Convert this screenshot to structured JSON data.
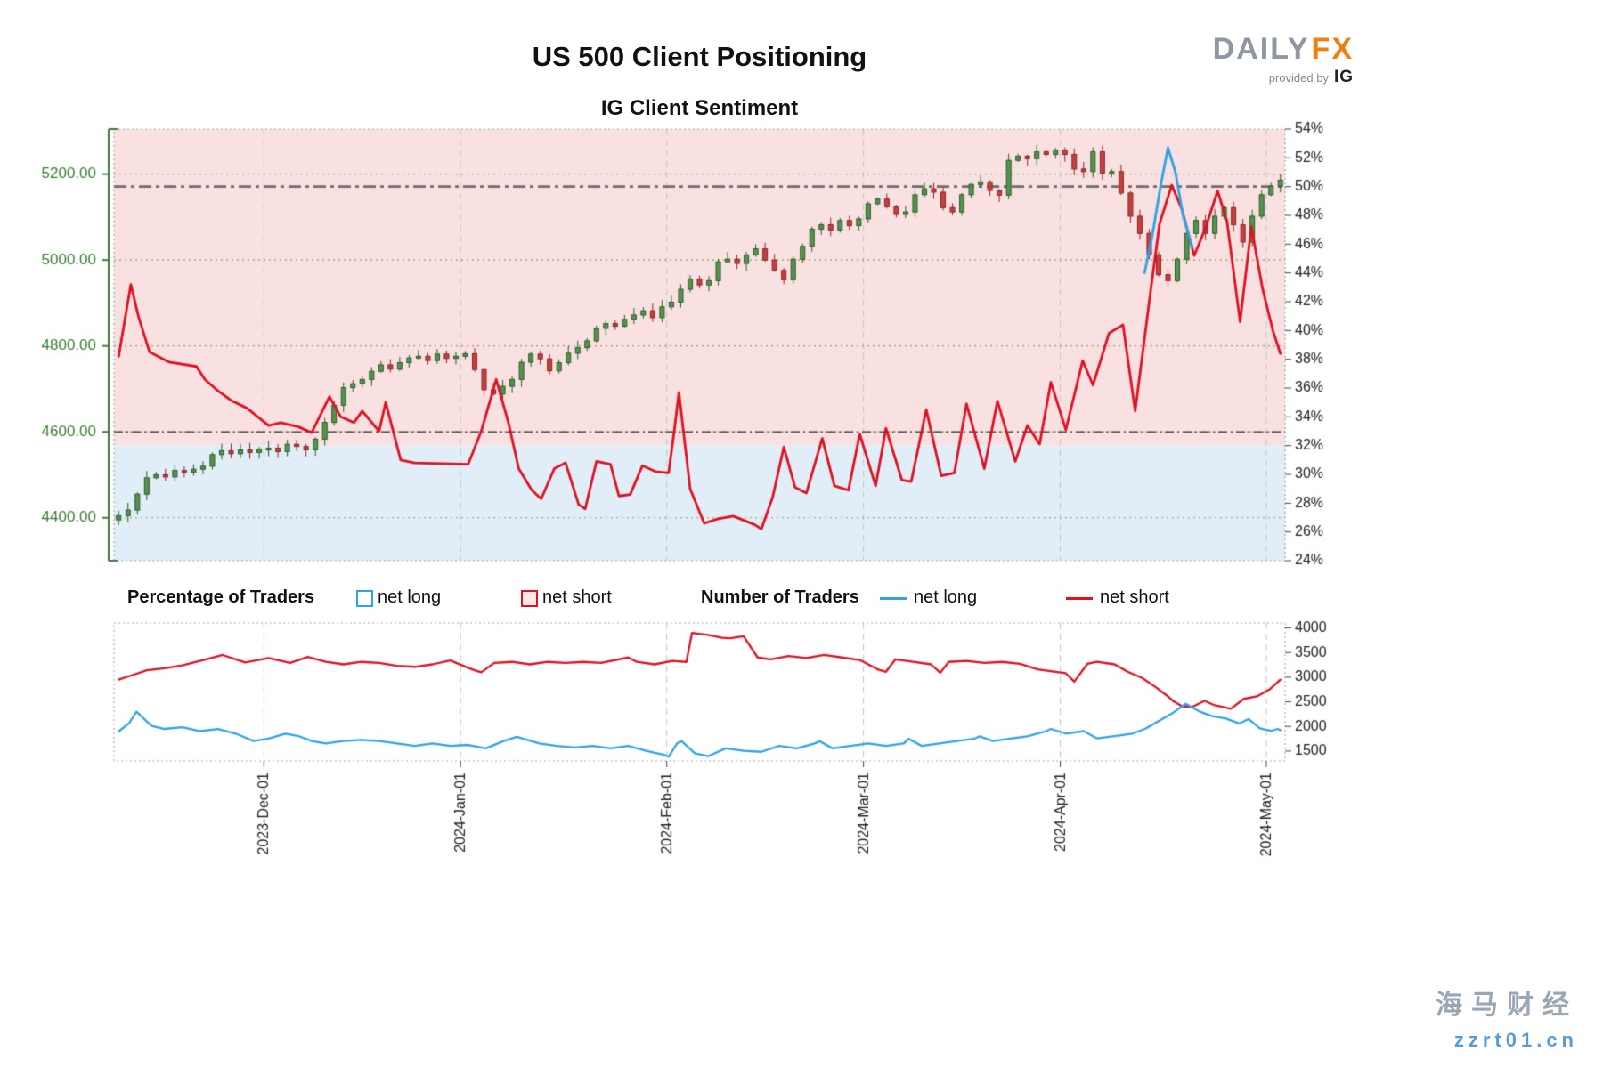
{
  "header": {
    "title": "US 500 Client Positioning",
    "subtitle": "IG Client Sentiment"
  },
  "brand": {
    "daily": "DAILY",
    "fx": "FX",
    "provided_by": "provided by",
    "ig": "IG"
  },
  "legend": {
    "pct_label": "Percentage of Traders",
    "pct_net_long": "net long",
    "pct_net_short": "net short",
    "num_label": "Number of Traders",
    "num_net_long": "net long",
    "num_net_short": "net short"
  },
  "watermark": {
    "line1": "海马财经",
    "line2": "zzrt01.cn"
  },
  "colors": {
    "net_long": "#2fa3e8",
    "net_short": "#dd1122",
    "candle_up_fill": "#57934f",
    "candle_up_stroke": "#275c27",
    "candle_down_fill": "#c44141",
    "candle_down_stroke": "#8c2323",
    "bg_pink": "#f9e1e1",
    "bg_blue": "#e1eef7",
    "price_label": "#3a7d33",
    "grid_price": "#9a9a50",
    "grid_month": "#c4c4c4",
    "ref_50": "#6e6e6e",
    "ref_4600": "#4a4a4a",
    "border": "#9aa89a",
    "axis_text": "#222222",
    "brand_gray": "#8f97a3",
    "brand_orange": "#f07f13",
    "swatch_short_bg": "#fbe9e9"
  },
  "chart_data": [
    {
      "type": "candlestick+line",
      "title": "IG Client Sentiment",
      "price_axis": {
        "ticks": [
          4400,
          4600,
          4800,
          5000,
          5200
        ],
        "labels": [
          "4400.00",
          "4600.00",
          "4800.00",
          "5000.00",
          "5200.00"
        ],
        "range": [
          4300,
          5305
        ]
      },
      "pct_axis": {
        "ticks": [
          54,
          52,
          50,
          48,
          46,
          44,
          42,
          40,
          38,
          36,
          34,
          32,
          30,
          28,
          26,
          24
        ],
        "range": [
          24,
          54
        ]
      },
      "x_axis": {
        "month_labels": [
          "2023-Dec-01",
          "2024-Jan-01",
          "2024-Feb-01",
          "2024-Mar-01",
          "2024-Apr-01",
          "2024-May-01"
        ],
        "month_day_index": [
          16,
          37,
          59,
          80,
          101,
          123
        ],
        "days_total": 125
      },
      "reference_lines": {
        "pct_level": 50,
        "price_level": 4600
      },
      "background_split_pct": 32,
      "close": [
        4405,
        4418,
        4455,
        4493,
        4500,
        4495,
        4510,
        4506,
        4513,
        4520,
        4547,
        4556,
        4549,
        4558,
        4552,
        4560,
        4562,
        4554,
        4571,
        4566,
        4558,
        4583,
        4622,
        4662,
        4703,
        4712,
        4722,
        4741,
        4756,
        4746,
        4761,
        4772,
        4776,
        4766,
        4781,
        4771,
        4776,
        4782,
        4745,
        4698,
        4688,
        4706,
        4722,
        4762,
        4781,
        4770,
        4742,
        4761,
        4783,
        4796,
        4812,
        4841,
        4852,
        4846,
        4862,
        4872,
        4882,
        4866,
        4891,
        4902,
        4932,
        4956,
        4942,
        4952,
        4996,
        5002,
        4992,
        5012,
        5026,
        5000,
        4976,
        4954,
        5002,
        5032,
        5072,
        5082,
        5070,
        5092,
        5080,
        5096,
        5131,
        5142,
        5124,
        5106,
        5112,
        5152,
        5166,
        5158,
        5122,
        5112,
        5152,
        5176,
        5182,
        5162,
        5151,
        5232,
        5242,
        5236,
        5252,
        5246,
        5256,
        5246,
        5212,
        5206,
        5252,
        5202,
        5206,
        5156,
        5102,
        5062,
        5012,
        4966,
        4952,
        5002,
        5062,
        5092,
        5062,
        5102,
        5122,
        5082,
        5042,
        5102,
        5152,
        5172,
        5186
      ],
      "net_short_pct_points": [
        [
          0,
          38.2
        ],
        [
          1.3,
          43.2
        ],
        [
          2.1,
          41
        ],
        [
          3.3,
          38.5
        ],
        [
          5.4,
          37.8
        ],
        [
          8.3,
          37.5
        ],
        [
          9.2,
          36.6
        ],
        [
          10.6,
          35.8
        ],
        [
          12.1,
          35.1
        ],
        [
          13.7,
          34.6
        ],
        [
          16,
          33.4
        ],
        [
          17.3,
          33.6
        ],
        [
          19.2,
          33.3
        ],
        [
          20.6,
          32.9
        ],
        [
          22.5,
          35.4
        ],
        [
          23.7,
          34
        ],
        [
          25.1,
          33.6
        ],
        [
          26,
          34.4
        ],
        [
          27.8,
          33
        ],
        [
          28.5,
          35
        ],
        [
          30.1,
          31
        ],
        [
          31.6,
          30.8
        ],
        [
          37.3,
          30.7
        ],
        [
          38.7,
          33
        ],
        [
          40.3,
          36.6
        ],
        [
          41.6,
          33.6
        ],
        [
          42.7,
          30.4
        ],
        [
          44.1,
          28.9
        ],
        [
          45.1,
          28.3
        ],
        [
          46.5,
          30.4
        ],
        [
          47.7,
          30.8
        ],
        [
          49.1,
          27.9
        ],
        [
          49.8,
          27.6
        ],
        [
          51,
          30.9
        ],
        [
          52.5,
          30.7
        ],
        [
          53.4,
          28.5
        ],
        [
          54.6,
          28.6
        ],
        [
          55.9,
          30.6
        ],
        [
          57.3,
          30.2
        ],
        [
          58.7,
          30.1
        ],
        [
          59.3,
          33
        ],
        [
          59.8,
          35.7
        ],
        [
          61,
          29
        ],
        [
          62.5,
          26.6
        ],
        [
          63.9,
          26.9
        ],
        [
          65.6,
          27.1
        ],
        [
          67.9,
          26.5
        ],
        [
          68.6,
          26.2
        ],
        [
          69.8,
          28.4
        ],
        [
          71,
          31.9
        ],
        [
          72.2,
          29.1
        ],
        [
          73.4,
          28.7
        ],
        [
          75.1,
          32.5
        ],
        [
          76.4,
          29.2
        ],
        [
          77.9,
          28.9
        ],
        [
          79.1,
          32.8
        ],
        [
          80.8,
          29.2
        ],
        [
          81.9,
          33.2
        ],
        [
          83.6,
          29.6
        ],
        [
          84.6,
          29.5
        ],
        [
          86.2,
          34.5
        ],
        [
          87.8,
          29.9
        ],
        [
          89.2,
          30.1
        ],
        [
          90.5,
          34.9
        ],
        [
          92.4,
          30.4
        ],
        [
          93.8,
          35.1
        ],
        [
          95.7,
          30.9
        ],
        [
          97,
          33.4
        ],
        [
          98.3,
          32.1
        ],
        [
          99.5,
          36.4
        ],
        [
          101.1,
          33.1
        ],
        [
          102.9,
          37.9
        ],
        [
          104,
          36.2
        ],
        [
          105.7,
          39.8
        ],
        [
          107.2,
          40.4
        ],
        [
          108.5,
          34.4
        ],
        [
          110.2,
          43
        ],
        [
          111.1,
          47.4
        ],
        [
          112.4,
          50.1
        ],
        [
          113.5,
          48.4
        ],
        [
          114.8,
          45.2
        ],
        [
          116,
          47.1
        ],
        [
          117.3,
          49.7
        ],
        [
          118.3,
          47.6
        ],
        [
          119.7,
          40.6
        ],
        [
          120.9,
          47.2
        ],
        [
          122.1,
          42.9
        ],
        [
          123.2,
          40
        ],
        [
          124,
          38.4
        ]
      ],
      "net_long_pct_points": [
        [
          109.5,
          44
        ],
        [
          110.3,
          46.5
        ],
        [
          111.2,
          50
        ],
        [
          112,
          52.7
        ],
        [
          112.8,
          51
        ],
        [
          113.6,
          48
        ],
        [
          114.6,
          45.8
        ]
      ]
    },
    {
      "type": "line",
      "count_axis": {
        "ticks": [
          4000,
          3500,
          3000,
          2500,
          2000,
          1500
        ],
        "range": [
          1300,
          4100
        ]
      },
      "net_short_count_points": [
        [
          0,
          2950
        ],
        [
          1.9,
          3070
        ],
        [
          3,
          3140
        ],
        [
          4.9,
          3180
        ],
        [
          6.8,
          3240
        ],
        [
          9.7,
          3380
        ],
        [
          11.1,
          3450
        ],
        [
          13.5,
          3300
        ],
        [
          14.9,
          3350
        ],
        [
          16,
          3390
        ],
        [
          18.3,
          3290
        ],
        [
          20.2,
          3410
        ],
        [
          22.1,
          3310
        ],
        [
          24,
          3260
        ],
        [
          25.9,
          3310
        ],
        [
          27.8,
          3290
        ],
        [
          29.7,
          3230
        ],
        [
          31.6,
          3210
        ],
        [
          33.5,
          3260
        ],
        [
          35.4,
          3340
        ],
        [
          37.3,
          3190
        ],
        [
          38,
          3140
        ],
        [
          38.7,
          3100
        ],
        [
          40.1,
          3290
        ],
        [
          42,
          3310
        ],
        [
          43.9,
          3260
        ],
        [
          45.8,
          3310
        ],
        [
          47.7,
          3290
        ],
        [
          49.6,
          3310
        ],
        [
          51.5,
          3290
        ],
        [
          54.4,
          3400
        ],
        [
          55.3,
          3310
        ],
        [
          57.2,
          3260
        ],
        [
          59.1,
          3330
        ],
        [
          60.6,
          3310
        ],
        [
          61.2,
          3900
        ],
        [
          62.9,
          3860
        ],
        [
          64.4,
          3800
        ],
        [
          65.3,
          3790
        ],
        [
          66.7,
          3830
        ],
        [
          68.2,
          3400
        ],
        [
          69.6,
          3360
        ],
        [
          71.5,
          3430
        ],
        [
          73.4,
          3390
        ],
        [
          75.3,
          3450
        ],
        [
          77.2,
          3400
        ],
        [
          79.1,
          3350
        ],
        [
          81,
          3160
        ],
        [
          81.9,
          3110
        ],
        [
          82.9,
          3360
        ],
        [
          84.8,
          3310
        ],
        [
          86.7,
          3260
        ],
        [
          87.7,
          3090
        ],
        [
          88.6,
          3310
        ],
        [
          90.5,
          3330
        ],
        [
          92.4,
          3290
        ],
        [
          94.3,
          3310
        ],
        [
          96.2,
          3270
        ],
        [
          98.1,
          3160
        ],
        [
          100,
          3110
        ],
        [
          101.1,
          3080
        ],
        [
          102,
          2910
        ],
        [
          103.4,
          3270
        ],
        [
          104.4,
          3310
        ],
        [
          106.3,
          3260
        ],
        [
          107.7,
          3110
        ],
        [
          109.2,
          2990
        ],
        [
          110.6,
          2810
        ],
        [
          112,
          2610
        ],
        [
          112.6,
          2510
        ],
        [
          113.5,
          2410
        ],
        [
          114.5,
          2390
        ],
        [
          115.9,
          2520
        ],
        [
          117,
          2430
        ],
        [
          117.8,
          2400
        ],
        [
          118.7,
          2360
        ],
        [
          120.1,
          2560
        ],
        [
          121.5,
          2610
        ],
        [
          122.9,
          2760
        ],
        [
          124,
          2950
        ]
      ],
      "net_long_count_points": [
        [
          0,
          1900
        ],
        [
          1.1,
          2060
        ],
        [
          1.9,
          2300
        ],
        [
          3.5,
          2010
        ],
        [
          4.9,
          1950
        ],
        [
          6.8,
          1985
        ],
        [
          8.7,
          1905
        ],
        [
          10.6,
          1950
        ],
        [
          12.5,
          1855
        ],
        [
          14.4,
          1705
        ],
        [
          16,
          1755
        ],
        [
          17.8,
          1855
        ],
        [
          19.2,
          1805
        ],
        [
          20.6,
          1705
        ],
        [
          22.1,
          1655
        ],
        [
          24,
          1705
        ],
        [
          25.9,
          1725
        ],
        [
          27.8,
          1705
        ],
        [
          29.7,
          1655
        ],
        [
          31.6,
          1605
        ],
        [
          33.5,
          1655
        ],
        [
          35.4,
          1605
        ],
        [
          37.3,
          1625
        ],
        [
          39.2,
          1555
        ],
        [
          41.1,
          1705
        ],
        [
          42.5,
          1790
        ],
        [
          44.9,
          1655
        ],
        [
          46.8,
          1605
        ],
        [
          48.7,
          1575
        ],
        [
          50.6,
          1605
        ],
        [
          52.5,
          1555
        ],
        [
          54.4,
          1605
        ],
        [
          56.3,
          1505
        ],
        [
          58.2,
          1425
        ],
        [
          58.7,
          1385
        ],
        [
          59.6,
          1655
        ],
        [
          60.1,
          1700
        ],
        [
          61.5,
          1455
        ],
        [
          62.9,
          1395
        ],
        [
          64.8,
          1555
        ],
        [
          66.7,
          1505
        ],
        [
          68.6,
          1485
        ],
        [
          70.5,
          1605
        ],
        [
          72.4,
          1555
        ],
        [
          74.3,
          1655
        ],
        [
          74.8,
          1700
        ],
        [
          76.2,
          1555
        ],
        [
          78.1,
          1605
        ],
        [
          80,
          1655
        ],
        [
          81.9,
          1605
        ],
        [
          83.8,
          1655
        ],
        [
          84.3,
          1750
        ],
        [
          85.7,
          1605
        ],
        [
          87.6,
          1655
        ],
        [
          89.5,
          1705
        ],
        [
          91.4,
          1755
        ],
        [
          91.9,
          1800
        ],
        [
          93.3,
          1705
        ],
        [
          95.2,
          1755
        ],
        [
          97.1,
          1805
        ],
        [
          99,
          1905
        ],
        [
          99.5,
          1950
        ],
        [
          101.1,
          1855
        ],
        [
          103,
          1905
        ],
        [
          104.4,
          1760
        ],
        [
          106.3,
          1805
        ],
        [
          108.2,
          1855
        ],
        [
          109.6,
          1955
        ],
        [
          111,
          2110
        ],
        [
          112.4,
          2260
        ],
        [
          113.9,
          2460
        ],
        [
          115.3,
          2310
        ],
        [
          116.7,
          2210
        ],
        [
          118.2,
          2160
        ],
        [
          119.6,
          2060
        ],
        [
          120.6,
          2150
        ],
        [
          121.8,
          1960
        ],
        [
          123,
          1910
        ],
        [
          123.7,
          1950
        ],
        [
          124,
          1925
        ]
      ]
    }
  ]
}
